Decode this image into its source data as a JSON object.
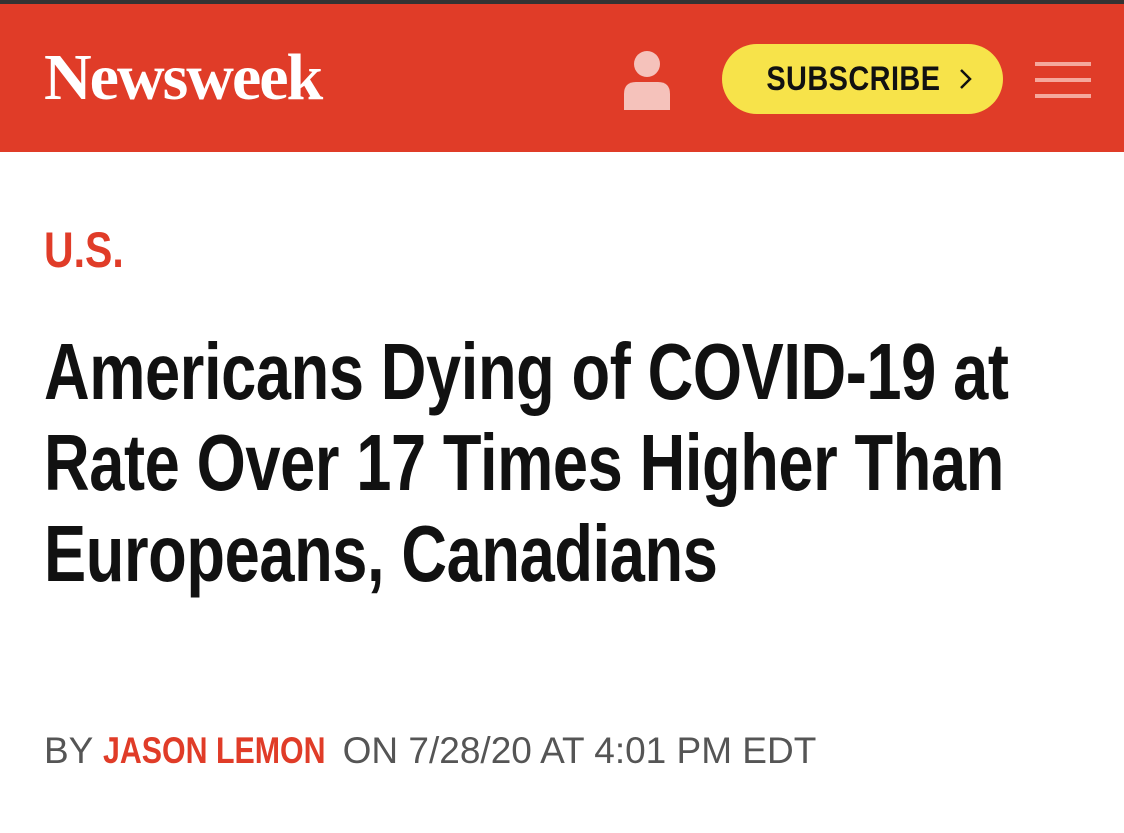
{
  "header": {
    "logo": "Newsweek",
    "subscribe": "SUBSCRIBE"
  },
  "article": {
    "category": "U.S.",
    "headline": "Americans Dying of COVID-19 at Rate Over 17 Times Higher Than Europeans, Canadians",
    "byline": {
      "prefix": "BY",
      "author": "JASON LEMON",
      "date": "ON 7/28/20 AT 4:01 PM EDT"
    }
  }
}
